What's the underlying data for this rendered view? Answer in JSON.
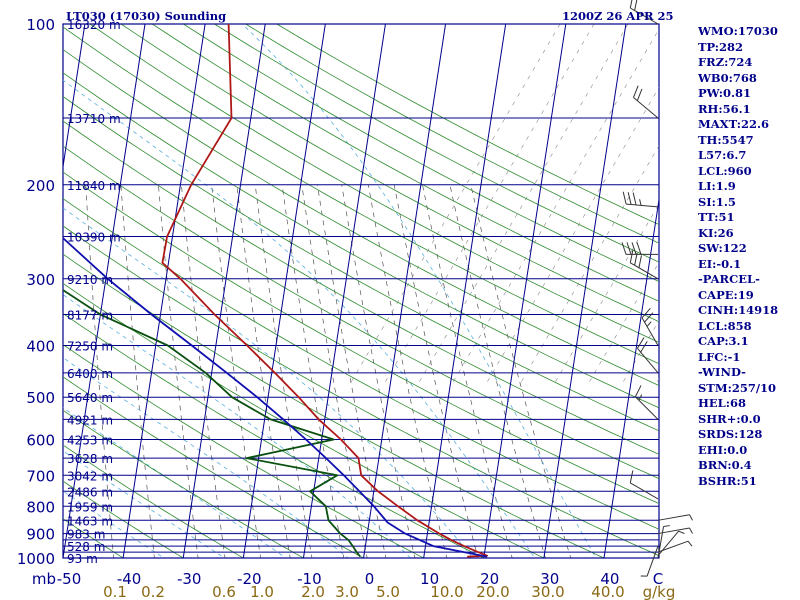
{
  "header": {
    "station": "LT030 (17030) Sounding",
    "time": "1200Z 26 APR 25"
  },
  "indices": [
    "WMO:17030",
    "TP:282",
    "FRZ:724",
    "WB0:768",
    "PW:0.81",
    "RH:56.1",
    "MAXT:22.6",
    "TH:5547",
    "L57:6.7",
    "LCL:960",
    "LI:1.9",
    "SI:1.5",
    "TT:51",
    "KI:26",
    "SW:122",
    "EI:-0.1",
    "-PARCEL-",
    "CAPE:19",
    "CINH:14918",
    "LCL:858",
    "CAP:3.1",
    "LFC:-1",
    "-WIND-",
    "STM:257/10",
    "HEL:68",
    "SHR+:0.0",
    "SRDS:128",
    "EHI:0.0",
    "BRN:0.4",
    "BSHR:51"
  ],
  "colors": {
    "background": "#ffffff",
    "isobar": "#00008b",
    "isotherm": "#00008b",
    "dry_adiabat": "#2e8b2e",
    "moist_adiabat": "#5ab0e0",
    "mixing_ratio": "#555555",
    "temperature": "#b01818",
    "dewpoint": "#0a5010",
    "parcel": "#1010b0",
    "wind_barb": "#333333",
    "text": "#00008b",
    "mixing_ratio_text": "#8b6914"
  },
  "chart_data": {
    "type": "line",
    "title": "LT030 (17030) Sounding",
    "xlabel": "C",
    "ylabel": "mb",
    "x_unit": "C",
    "y_unit": "mb",
    "ylim": [
      1000,
      100
    ],
    "xlim": [
      -50,
      50
    ],
    "skew_per_decade": 82,
    "y_scale": "log",
    "y_ticks": [
      100,
      200,
      300,
      400,
      500,
      600,
      700,
      800,
      900,
      1000
    ],
    "x_ticks": [
      -50,
      -40,
      -30,
      -20,
      -10,
      0,
      10,
      20,
      30,
      40
    ],
    "height_labels": [
      {
        "p": 100,
        "label": "16320 m"
      },
      {
        "p": 150,
        "label": "13710 m"
      },
      {
        "p": 200,
        "label": "11840 m"
      },
      {
        "p": 250,
        "label": "10390 m"
      },
      {
        "p": 300,
        "label": "9210 m"
      },
      {
        "p": 350,
        "label": "8177 m"
      },
      {
        "p": 400,
        "label": "7250 m"
      },
      {
        "p": 450,
        "label": "6400 m"
      },
      {
        "p": 500,
        "label": "5640 m"
      },
      {
        "p": 550,
        "label": "4921 m"
      },
      {
        "p": 600,
        "label": "4253 m"
      },
      {
        "p": 650,
        "label": "3628 m"
      },
      {
        "p": 700,
        "label": "3042 m"
      },
      {
        "p": 750,
        "label": "2486 m"
      },
      {
        "p": 800,
        "label": "1959 m"
      },
      {
        "p": 850,
        "label": "1463 m"
      },
      {
        "p": 900,
        "label": "983 m"
      },
      {
        "p": 950,
        "label": "528 m"
      },
      {
        "p": 1000,
        "label": "93 m"
      }
    ],
    "mixing_ratio_labels": [
      "0.1",
      "0.2",
      "0.6",
      "1.0",
      "2.0",
      "3.0",
      "5.0",
      "10.0",
      "20.0",
      "30.0",
      "40.0",
      "g/kg"
    ],
    "mixing_ratio_values": [
      0.1,
      0.2,
      0.6,
      1.0,
      2.0,
      3.0,
      5.0,
      10.0,
      20.0,
      30.0,
      40.0
    ],
    "series": [
      {
        "name": "",
        "role": "temperature",
        "points": [
          {
            "p": 994,
            "t": 17.2
          },
          {
            "p": 990,
            "t": 20.5
          },
          {
            "p": 975,
            "t": 18.9
          },
          {
            "p": 950,
            "t": 16.4
          },
          {
            "p": 925,
            "t": 14.1
          },
          {
            "p": 900,
            "t": 12.0
          },
          {
            "p": 850,
            "t": 8.0
          },
          {
            "p": 800,
            "t": 4.4
          },
          {
            "p": 750,
            "t": 0.7
          },
          {
            "p": 700,
            "t": -2.5
          },
          {
            "p": 650,
            "t": -3.4
          },
          {
            "p": 600,
            "t": -6.8
          },
          {
            "p": 550,
            "t": -11.0
          },
          {
            "p": 500,
            "t": -14.9
          },
          {
            "p": 450,
            "t": -19.5
          },
          {
            "p": 400,
            "t": -24.8
          },
          {
            "p": 350,
            "t": -31.0
          },
          {
            "p": 300,
            "t": -37.6
          },
          {
            "p": 280,
            "t": -41.0
          },
          {
            "p": 250,
            "t": -40.9
          },
          {
            "p": 200,
            "t": -38.2
          },
          {
            "p": 150,
            "t": -33.2
          },
          {
            "p": 100,
            "t": -36.1
          }
        ]
      },
      {
        "name": "",
        "role": "dewpoint",
        "points": [
          {
            "p": 994,
            "t": -0.6
          },
          {
            "p": 975,
            "t": -1.3
          },
          {
            "p": 950,
            "t": -2.1
          },
          {
            "p": 925,
            "t": -3.0
          },
          {
            "p": 900,
            "t": -4.5
          },
          {
            "p": 850,
            "t": -6.8
          },
          {
            "p": 800,
            "t": -7.6
          },
          {
            "p": 750,
            "t": -10.6
          },
          {
            "p": 700,
            "t": -6.5
          },
          {
            "p": 650,
            "t": -22.0
          },
          {
            "p": 600,
            "t": -8.0
          },
          {
            "p": 550,
            "t": -19.0
          },
          {
            "p": 500,
            "t": -26.0
          },
          {
            "p": 450,
            "t": -31.0
          },
          {
            "p": 400,
            "t": -38.0
          },
          {
            "p": 350,
            "t": -50.0
          },
          {
            "p": 300,
            "t": -60.0
          },
          {
            "p": 270,
            "t": -60.0
          }
        ]
      },
      {
        "name": "",
        "role": "parcel",
        "points": [
          {
            "p": 994,
            "t": 20.5
          },
          {
            "p": 950,
            "t": 11.3
          },
          {
            "p": 900,
            "t": 6.3
          },
          {
            "p": 858,
            "t": 3.1
          },
          {
            "p": 800,
            "t": 0.4
          },
          {
            "p": 750,
            "t": -2.4
          },
          {
            "p": 700,
            "t": -5.4
          },
          {
            "p": 650,
            "t": -8.8
          },
          {
            "p": 600,
            "t": -12.6
          },
          {
            "p": 550,
            "t": -16.9
          },
          {
            "p": 500,
            "t": -21.8
          },
          {
            "p": 450,
            "t": -27.5
          },
          {
            "p": 400,
            "t": -34.0
          },
          {
            "p": 350,
            "t": -41.5
          },
          {
            "p": 300,
            "t": -49.7
          },
          {
            "p": 250,
            "t": -58.5
          },
          {
            "p": 200,
            "t": -67.9
          },
          {
            "p": 150,
            "t": -78.5
          },
          {
            "p": 115,
            "t": -87.5
          }
        ]
      }
    ],
    "wind_barbs": [
      {
        "p": 1000,
        "dir": 10,
        "spd": 5
      },
      {
        "p": 990,
        "dir": 40,
        "spd": 5
      },
      {
        "p": 975,
        "dir": 70,
        "spd": 5
      },
      {
        "p": 950,
        "dir": 200,
        "spd": 5
      },
      {
        "p": 900,
        "dir": 80,
        "spd": 5
      },
      {
        "p": 850,
        "dir": 80,
        "spd": 5
      },
      {
        "p": 775,
        "dir": 300,
        "spd": 10
      },
      {
        "p": 550,
        "dir": 315,
        "spd": 15
      },
      {
        "p": 450,
        "dir": 320,
        "spd": 20
      },
      {
        "p": 400,
        "dir": 330,
        "spd": 25
      },
      {
        "p": 300,
        "dir": 300,
        "spd": 30
      },
      {
        "p": 270,
        "dir": 270,
        "spd": 40
      },
      {
        "p": 220,
        "dir": 275,
        "spd": 35
      },
      {
        "p": 150,
        "dir": 310,
        "spd": 20
      },
      {
        "p": 100,
        "dir": 300,
        "spd": 20
      }
    ]
  }
}
